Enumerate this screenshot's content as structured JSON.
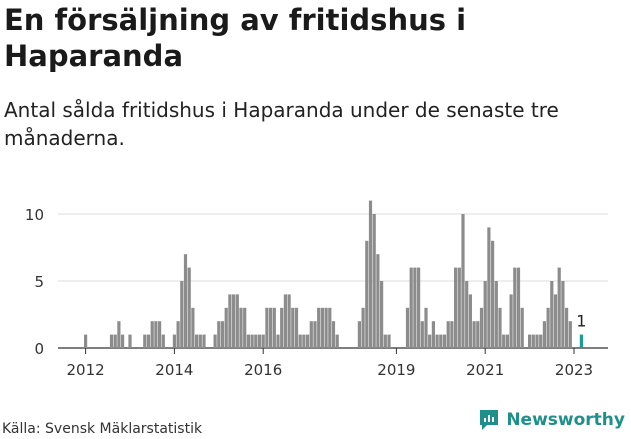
{
  "title": "En försäljning av fritidshus i Haparanda",
  "subtitle": "Antal sålda fritidshus i Haparanda under de senaste tre månaderna.",
  "source": "Källa: Svensk Mäklarstatistik",
  "brand": {
    "name": "Newsworthy",
    "icon": "chart-bubble-icon",
    "color": "#1f8f8a"
  },
  "chart_data": {
    "type": "bar",
    "x_unit": "month",
    "ylim": [
      0,
      12
    ],
    "yticks": [
      0,
      5,
      10
    ],
    "xtick_labels": [
      "2012",
      "2014",
      "2016",
      "2019",
      "2021",
      "2023"
    ],
    "grid": true,
    "bar_color": "#8c8c8c",
    "highlight_color": "#1a9e96",
    "highlight_label": "1",
    "series": [
      {
        "values": [
          {
            "x": "2012-01",
            "y": 1
          },
          {
            "x": "2012-08",
            "y": 1
          },
          {
            "x": "2012-09",
            "y": 1
          },
          {
            "x": "2012-10",
            "y": 2
          },
          {
            "x": "2012-11",
            "y": 1
          },
          {
            "x": "2013-01",
            "y": 1
          },
          {
            "x": "2013-05",
            "y": 1
          },
          {
            "x": "2013-06",
            "y": 1
          },
          {
            "x": "2013-07",
            "y": 2
          },
          {
            "x": "2013-08",
            "y": 2
          },
          {
            "x": "2013-09",
            "y": 2
          },
          {
            "x": "2013-10",
            "y": 1
          },
          {
            "x": "2014-01",
            "y": 1
          },
          {
            "x": "2014-02",
            "y": 2
          },
          {
            "x": "2014-03",
            "y": 5
          },
          {
            "x": "2014-04",
            "y": 7
          },
          {
            "x": "2014-05",
            "y": 6
          },
          {
            "x": "2014-06",
            "y": 3
          },
          {
            "x": "2014-07",
            "y": 1
          },
          {
            "x": "2014-08",
            "y": 1
          },
          {
            "x": "2014-09",
            "y": 1
          },
          {
            "x": "2014-12",
            "y": 1
          },
          {
            "x": "2015-01",
            "y": 2
          },
          {
            "x": "2015-02",
            "y": 2
          },
          {
            "x": "2015-03",
            "y": 3
          },
          {
            "x": "2015-04",
            "y": 4
          },
          {
            "x": "2015-05",
            "y": 4
          },
          {
            "x": "2015-06",
            "y": 4
          },
          {
            "x": "2015-07",
            "y": 3
          },
          {
            "x": "2015-08",
            "y": 3
          },
          {
            "x": "2015-09",
            "y": 1
          },
          {
            "x": "2015-10",
            "y": 1
          },
          {
            "x": "2015-11",
            "y": 1
          },
          {
            "x": "2015-12",
            "y": 1
          },
          {
            "x": "2016-01",
            "y": 1
          },
          {
            "x": "2016-02",
            "y": 3
          },
          {
            "x": "2016-03",
            "y": 3
          },
          {
            "x": "2016-04",
            "y": 3
          },
          {
            "x": "2016-05",
            "y": 1
          },
          {
            "x": "2016-06",
            "y": 3
          },
          {
            "x": "2016-07",
            "y": 4
          },
          {
            "x": "2016-08",
            "y": 4
          },
          {
            "x": "2016-09",
            "y": 3
          },
          {
            "x": "2016-10",
            "y": 3
          },
          {
            "x": "2016-11",
            "y": 1
          },
          {
            "x": "2016-12",
            "y": 1
          },
          {
            "x": "2017-01",
            "y": 1
          },
          {
            "x": "2017-02",
            "y": 2
          },
          {
            "x": "2017-03",
            "y": 2
          },
          {
            "x": "2017-04",
            "y": 3
          },
          {
            "x": "2017-05",
            "y": 3
          },
          {
            "x": "2017-06",
            "y": 3
          },
          {
            "x": "2017-07",
            "y": 3
          },
          {
            "x": "2017-08",
            "y": 2
          },
          {
            "x": "2017-09",
            "y": 1
          },
          {
            "x": "2018-03",
            "y": 2
          },
          {
            "x": "2018-04",
            "y": 3
          },
          {
            "x": "2018-05",
            "y": 8
          },
          {
            "x": "2018-06",
            "y": 11
          },
          {
            "x": "2018-07",
            "y": 10
          },
          {
            "x": "2018-08",
            "y": 7
          },
          {
            "x": "2018-09",
            "y": 5
          },
          {
            "x": "2018-10",
            "y": 1
          },
          {
            "x": "2018-11",
            "y": 1
          },
          {
            "x": "2019-04",
            "y": 3
          },
          {
            "x": "2019-05",
            "y": 6
          },
          {
            "x": "2019-06",
            "y": 6
          },
          {
            "x": "2019-07",
            "y": 6
          },
          {
            "x": "2019-08",
            "y": 2
          },
          {
            "x": "2019-09",
            "y": 3
          },
          {
            "x": "2019-10",
            "y": 1
          },
          {
            "x": "2019-11",
            "y": 2
          },
          {
            "x": "2019-12",
            "y": 1
          },
          {
            "x": "2020-01",
            "y": 1
          },
          {
            "x": "2020-02",
            "y": 1
          },
          {
            "x": "2020-03",
            "y": 2
          },
          {
            "x": "2020-04",
            "y": 2
          },
          {
            "x": "2020-05",
            "y": 6
          },
          {
            "x": "2020-06",
            "y": 6
          },
          {
            "x": "2020-07",
            "y": 10
          },
          {
            "x": "2020-08",
            "y": 5
          },
          {
            "x": "2020-09",
            "y": 4
          },
          {
            "x": "2020-10",
            "y": 2
          },
          {
            "x": "2020-11",
            "y": 2
          },
          {
            "x": "2020-12",
            "y": 3
          },
          {
            "x": "2021-01",
            "y": 5
          },
          {
            "x": "2021-02",
            "y": 9
          },
          {
            "x": "2021-03",
            "y": 8
          },
          {
            "x": "2021-04",
            "y": 5
          },
          {
            "x": "2021-05",
            "y": 3
          },
          {
            "x": "2021-06",
            "y": 1
          },
          {
            "x": "2021-07",
            "y": 1
          },
          {
            "x": "2021-08",
            "y": 4
          },
          {
            "x": "2021-09",
            "y": 6
          },
          {
            "x": "2021-10",
            "y": 6
          },
          {
            "x": "2021-11",
            "y": 3
          },
          {
            "x": "2022-01",
            "y": 1
          },
          {
            "x": "2022-02",
            "y": 1
          },
          {
            "x": "2022-03",
            "y": 1
          },
          {
            "x": "2022-04",
            "y": 1
          },
          {
            "x": "2022-05",
            "y": 2
          },
          {
            "x": "2022-06",
            "y": 3
          },
          {
            "x": "2022-07",
            "y": 5
          },
          {
            "x": "2022-08",
            "y": 4
          },
          {
            "x": "2022-09",
            "y": 6
          },
          {
            "x": "2022-10",
            "y": 5
          },
          {
            "x": "2022-11",
            "y": 3
          },
          {
            "x": "2022-12",
            "y": 2
          },
          {
            "x": "2023-03",
            "y": 1
          }
        ]
      }
    ]
  }
}
